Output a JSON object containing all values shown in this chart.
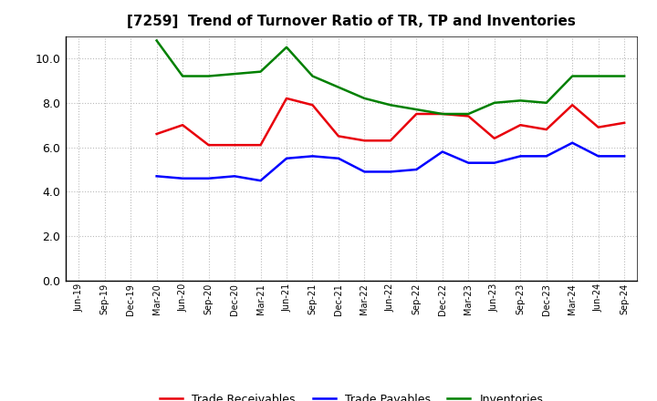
{
  "title": "[7259]  Trend of Turnover Ratio of TR, TP and Inventories",
  "x_labels": [
    "Jun-19",
    "Sep-19",
    "Dec-19",
    "Mar-20",
    "Jun-20",
    "Sep-20",
    "Dec-20",
    "Mar-21",
    "Jun-21",
    "Sep-21",
    "Dec-21",
    "Mar-22",
    "Jun-22",
    "Sep-22",
    "Dec-22",
    "Mar-23",
    "Jun-23",
    "Sep-23",
    "Dec-23",
    "Mar-24",
    "Jun-24",
    "Sep-24"
  ],
  "trade_receivables": [
    null,
    null,
    null,
    6.6,
    7.0,
    6.1,
    6.1,
    6.1,
    8.2,
    7.9,
    6.5,
    6.3,
    6.3,
    7.5,
    7.5,
    7.4,
    6.4,
    7.0,
    6.8,
    7.9,
    6.9,
    7.1
  ],
  "trade_payables": [
    null,
    null,
    null,
    4.7,
    4.6,
    4.6,
    4.7,
    4.5,
    5.5,
    5.6,
    5.5,
    4.9,
    4.9,
    5.0,
    5.8,
    5.3,
    5.3,
    5.6,
    5.6,
    6.2,
    5.6,
    5.6
  ],
  "inventories": [
    null,
    null,
    null,
    10.8,
    9.2,
    9.2,
    9.3,
    9.4,
    10.5,
    9.2,
    8.7,
    8.2,
    7.9,
    7.7,
    7.5,
    7.5,
    8.0,
    8.1,
    8.0,
    9.2,
    9.2,
    9.2
  ],
  "colors": {
    "trade_receivables": "#e8000b",
    "trade_payables": "#0000ff",
    "inventories": "#008000"
  },
  "ylim": [
    0,
    11.0
  ],
  "yticks": [
    0.0,
    2.0,
    4.0,
    6.0,
    8.0,
    10.0
  ],
  "background_color": "#ffffff",
  "grid_color": "#bbbbbb",
  "legend_labels": [
    "Trade Receivables",
    "Trade Payables",
    "Inventories"
  ]
}
